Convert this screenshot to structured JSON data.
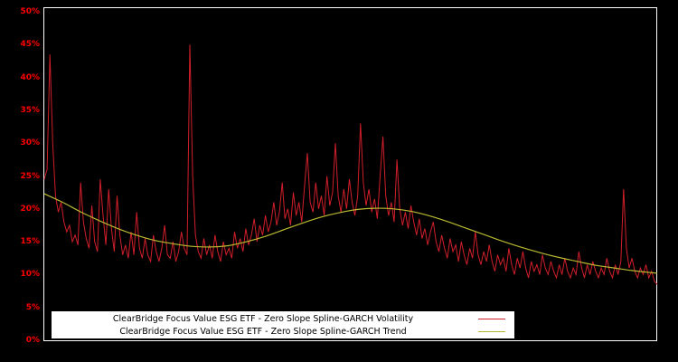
{
  "chart_data": {
    "type": "line",
    "title": "",
    "xlabel": "",
    "ylabel": "",
    "ylim": [
      0,
      50
    ],
    "ytick_labels": [
      "0%",
      "5%",
      "10%",
      "15%",
      "20%",
      "25%",
      "30%",
      "35%",
      "40%",
      "45%",
      "50%"
    ],
    "ytick_values": [
      0,
      5,
      10,
      15,
      20,
      25,
      30,
      35,
      40,
      45,
      50
    ],
    "grid": false,
    "legend_position": "bottom-center",
    "colors": {
      "background": "#000000",
      "plot_border": "#ffffff",
      "tick_label": "#ff0000",
      "legend_background": "#ffffff"
    },
    "series": [
      {
        "name": "ClearBridge Focus Value ESG ETF - Zero Slope Spline-GARCH Volatility",
        "color": "#d01f2a",
        "style": "noisy",
        "values": [
          24.5,
          26.0,
          43.5,
          30.0,
          22.0,
          19.5,
          21.0,
          18.0,
          16.5,
          17.5,
          15.0,
          16.0,
          14.5,
          24.0,
          18.0,
          15.5,
          14.0,
          20.5,
          15.0,
          13.5,
          24.5,
          19.0,
          14.5,
          23.0,
          17.0,
          13.5,
          22.0,
          16.0,
          13.0,
          14.5,
          12.5,
          16.5,
          13.0,
          19.5,
          14.0,
          12.5,
          15.5,
          13.0,
          12.0,
          16.0,
          13.5,
          12.0,
          14.0,
          17.5,
          13.0,
          12.5,
          15.0,
          12.0,
          13.5,
          16.5,
          14.0,
          13.0,
          45.0,
          25.0,
          16.0,
          13.5,
          12.5,
          15.5,
          13.0,
          14.5,
          12.5,
          16.0,
          13.5,
          12.0,
          15.0,
          13.0,
          14.0,
          12.5,
          16.5,
          14.0,
          15.5,
          13.5,
          17.0,
          14.5,
          16.0,
          18.5,
          15.0,
          17.5,
          16.0,
          19.0,
          16.5,
          18.0,
          21.0,
          17.5,
          19.5,
          24.0,
          18.5,
          20.0,
          17.5,
          22.5,
          19.0,
          21.0,
          18.0,
          23.5,
          28.5,
          21.0,
          19.5,
          24.0,
          20.0,
          22.0,
          19.0,
          25.0,
          20.5,
          22.5,
          30.0,
          22.0,
          19.5,
          23.0,
          20.0,
          24.5,
          21.0,
          19.0,
          22.0,
          33.0,
          24.0,
          20.5,
          23.0,
          19.5,
          21.5,
          18.5,
          25.0,
          31.0,
          22.0,
          19.0,
          21.0,
          18.0,
          27.5,
          20.0,
          17.5,
          19.5,
          17.0,
          20.5,
          18.0,
          16.0,
          18.5,
          15.5,
          17.0,
          14.5,
          16.5,
          18.0,
          15.0,
          13.5,
          16.0,
          14.0,
          12.5,
          15.5,
          13.5,
          14.5,
          12.0,
          15.0,
          13.0,
          11.5,
          14.0,
          12.5,
          16.5,
          13.0,
          11.5,
          13.5,
          12.0,
          14.5,
          12.0,
          10.5,
          13.0,
          11.5,
          12.5,
          10.5,
          14.0,
          11.5,
          10.0,
          12.5,
          11.0,
          13.5,
          11.0,
          9.5,
          12.0,
          10.5,
          11.5,
          10.0,
          13.0,
          11.0,
          10.0,
          12.0,
          10.5,
          9.5,
          11.5,
          10.0,
          12.5,
          10.5,
          9.5,
          11.0,
          10.0,
          13.5,
          11.0,
          9.5,
          11.5,
          10.0,
          12.0,
          10.5,
          9.5,
          11.0,
          10.0,
          12.5,
          10.5,
          9.5,
          11.5,
          10.0,
          12.0,
          23.0,
          14.0,
          11.0,
          12.5,
          10.5,
          9.5,
          11.0,
          10.0,
          11.5,
          9.5,
          10.5,
          9.0,
          8.5
        ]
      },
      {
        "name": "ClearBridge Focus Value ESG ETF - Zero Slope Spline-GARCH Trend",
        "color": "#b8b832",
        "style": "smooth",
        "x": [
          0.0,
          0.03,
          0.06,
          0.09,
          0.12,
          0.15,
          0.18,
          0.21,
          0.24,
          0.27,
          0.3,
          0.33,
          0.36,
          0.39,
          0.42,
          0.45,
          0.48,
          0.51,
          0.54,
          0.57,
          0.6,
          0.63,
          0.66,
          0.69,
          0.72,
          0.75,
          0.78,
          0.81,
          0.84,
          0.87,
          0.9,
          0.93,
          0.96,
          1.0
        ],
        "values": [
          22.3,
          21.0,
          19.5,
          18.2,
          17.0,
          16.0,
          15.2,
          14.7,
          14.3,
          14.2,
          14.4,
          15.0,
          15.8,
          16.8,
          17.8,
          18.7,
          19.4,
          19.9,
          20.1,
          20.0,
          19.6,
          18.9,
          18.0,
          17.0,
          16.0,
          15.0,
          14.1,
          13.3,
          12.6,
          12.0,
          11.4,
          11.0,
          10.6,
          10.2
        ]
      }
    ]
  }
}
